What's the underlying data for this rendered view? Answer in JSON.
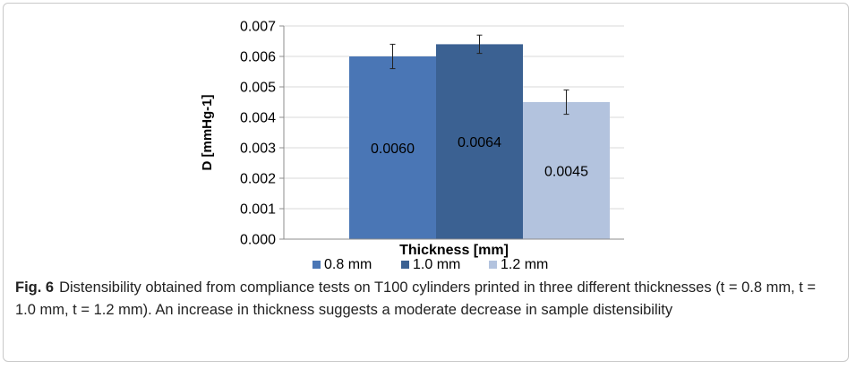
{
  "chart_data": {
    "type": "bar",
    "categories": [
      ""
    ],
    "series": [
      {
        "name": "0.8 mm",
        "values": [
          0.006
        ],
        "error": [
          0.0004
        ],
        "label": "0.0060",
        "color": "#4a76b5"
      },
      {
        "name": "1.0 mm",
        "values": [
          0.0064
        ],
        "error": [
          0.0003
        ],
        "label": "0.0064",
        "color": "#3b6192"
      },
      {
        "name": "1.2 mm",
        "values": [
          0.0045
        ],
        "error": [
          0.0004
        ],
        "label": "0.0045",
        "color": "#b3c3de"
      }
    ],
    "xlabel": "Thickness [mm]",
    "ylabel": "D [mmHg-1]",
    "ylim": [
      0,
      0.007
    ],
    "yticks": [
      "0.000",
      "0.001",
      "0.002",
      "0.003",
      "0.004",
      "0.005",
      "0.006",
      "0.007"
    ],
    "grid": true,
    "legend_position": "bottom"
  },
  "caption": {
    "label": "Fig. 6",
    "text": "Distensibility obtained from compliance tests on T100 cylinders printed in three different thicknesses (t = 0.8 mm, t = 1.0 mm, t = 1.2 mm). An increase in thickness suggests a moderate decrease in sample distensibility"
  }
}
